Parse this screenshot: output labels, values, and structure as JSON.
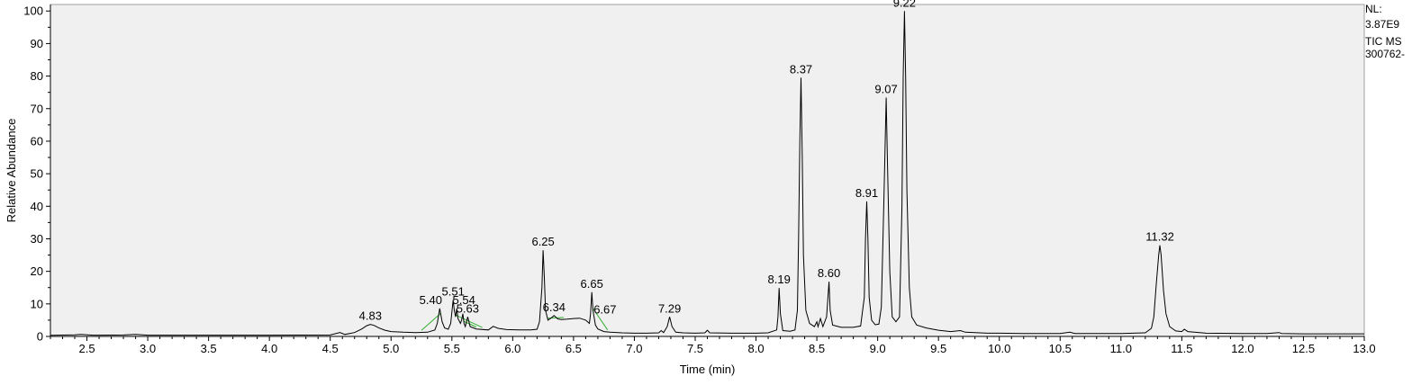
{
  "info": {
    "nl_label": "NL:",
    "nl_value": "3.87E9",
    "scan_label": "TIC  MS",
    "file_label": "300762-"
  },
  "chart_data": {
    "type": "line",
    "xlabel": "Time (min)",
    "ylabel": "Relative Abundance",
    "xlim": [
      2.2,
      13.0
    ],
    "ylim": [
      0,
      102
    ],
    "x_ticks": [
      "2.5",
      "3.0",
      "3.5",
      "4.0",
      "4.5",
      "5.0",
      "5.5",
      "6.0",
      "6.5",
      "7.0",
      "7.5",
      "8.0",
      "8.5",
      "9.0",
      "9.5",
      "10.0",
      "10.5",
      "11.0",
      "11.5",
      "12.0",
      "12.5",
      "13.0"
    ],
    "y_ticks": [
      "0",
      "10",
      "20",
      "30",
      "40",
      "50",
      "60",
      "70",
      "80",
      "90",
      "100"
    ],
    "peaks": [
      {
        "label": "4.83",
        "rt": 4.83,
        "height": 3.7
      },
      {
        "label": "5.40",
        "rt": 5.4,
        "height": 8.6
      },
      {
        "label": "5.51",
        "rt": 5.51,
        "height": 11.2
      },
      {
        "label": "5.54",
        "rt": 5.54,
        "height": 8.6
      },
      {
        "label": "5.63",
        "rt": 5.63,
        "height": 6.0
      },
      {
        "label": "6.25",
        "rt": 6.25,
        "height": 26.5
      },
      {
        "label": "6.34",
        "rt": 6.34,
        "height": 6.4
      },
      {
        "label": "6.65",
        "rt": 6.65,
        "height": 13.6
      },
      {
        "label": "6.67",
        "rt": 6.67,
        "height": 5.7
      },
      {
        "label": "7.29",
        "rt": 7.29,
        "height": 6.0
      },
      {
        "label": "8.19",
        "rt": 8.19,
        "height": 14.9
      },
      {
        "label": "8.37",
        "rt": 8.37,
        "height": 79.5
      },
      {
        "label": "8.60",
        "rt": 8.6,
        "height": 16.8
      },
      {
        "label": "8.91",
        "rt": 8.91,
        "height": 41.5
      },
      {
        "label": "9.07",
        "rt": 9.07,
        "height": 73.4
      },
      {
        "label": "9.22",
        "rt": 9.22,
        "height": 100.0
      },
      {
        "label": "11.32",
        "rt": 11.32,
        "height": 28.0
      }
    ],
    "trace": [
      [
        2.2,
        0.35
      ],
      [
        2.4,
        0.5
      ],
      [
        2.45,
        0.6
      ],
      [
        2.55,
        0.4
      ],
      [
        2.8,
        0.45
      ],
      [
        2.9,
        0.6
      ],
      [
        3.0,
        0.4
      ],
      [
        3.5,
        0.4
      ],
      [
        4.0,
        0.4
      ],
      [
        4.5,
        0.45
      ],
      [
        4.58,
        1.2
      ],
      [
        4.62,
        0.6
      ],
      [
        4.7,
        1.2
      ],
      [
        4.76,
        2.3
      ],
      [
        4.8,
        3.3
      ],
      [
        4.83,
        3.7
      ],
      [
        4.86,
        3.4
      ],
      [
        4.9,
        2.6
      ],
      [
        4.95,
        1.9
      ],
      [
        5.0,
        1.5
      ],
      [
        5.1,
        1.3
      ],
      [
        5.2,
        1.2
      ],
      [
        5.3,
        1.3
      ],
      [
        5.36,
        2.0
      ],
      [
        5.38,
        4.0
      ],
      [
        5.4,
        8.6
      ],
      [
        5.42,
        4.5
      ],
      [
        5.44,
        2.6
      ],
      [
        5.47,
        2.2
      ],
      [
        5.49,
        4.0
      ],
      [
        5.51,
        11.2
      ],
      [
        5.52,
        8.0
      ],
      [
        5.53,
        6.0
      ],
      [
        5.54,
        8.6
      ],
      [
        5.55,
        5.5
      ],
      [
        5.57,
        4.0
      ],
      [
        5.58,
        5.0
      ],
      [
        5.59,
        7.0
      ],
      [
        5.6,
        4.0
      ],
      [
        5.61,
        3.0
      ],
      [
        5.63,
        6.0
      ],
      [
        5.65,
        3.0
      ],
      [
        5.7,
        2.3
      ],
      [
        5.8,
        2.0
      ],
      [
        5.84,
        3.1
      ],
      [
        5.88,
        2.5
      ],
      [
        5.95,
        2.1
      ],
      [
        6.05,
        2.0
      ],
      [
        6.15,
        2.0
      ],
      [
        6.2,
        2.2
      ],
      [
        6.22,
        4.5
      ],
      [
        6.24,
        15.0
      ],
      [
        6.25,
        26.5
      ],
      [
        6.26,
        18.0
      ],
      [
        6.27,
        8.0
      ],
      [
        6.29,
        5.0
      ],
      [
        6.31,
        5.5
      ],
      [
        6.34,
        6.4
      ],
      [
        6.37,
        5.4
      ],
      [
        6.4,
        5.2
      ],
      [
        6.45,
        5.3
      ],
      [
        6.5,
        5.5
      ],
      [
        6.55,
        5.6
      ],
      [
        6.6,
        5.0
      ],
      [
        6.63,
        4.0
      ],
      [
        6.64,
        7.0
      ],
      [
        6.65,
        13.6
      ],
      [
        6.66,
        8.0
      ],
      [
        6.67,
        5.7
      ],
      [
        6.68,
        3.5
      ],
      [
        6.7,
        2.3
      ],
      [
        6.75,
        1.5
      ],
      [
        6.8,
        1.3
      ],
      [
        6.9,
        1.1
      ],
      [
        7.0,
        1.0
      ],
      [
        7.1,
        1.0
      ],
      [
        7.2,
        1.1
      ],
      [
        7.22,
        1.8
      ],
      [
        7.24,
        1.2
      ],
      [
        7.27,
        3.0
      ],
      [
        7.29,
        6.0
      ],
      [
        7.31,
        3.0
      ],
      [
        7.34,
        1.3
      ],
      [
        7.4,
        1.1
      ],
      [
        7.5,
        1.0
      ],
      [
        7.58,
        1.1
      ],
      [
        7.6,
        1.9
      ],
      [
        7.62,
        1.1
      ],
      [
        7.8,
        1.0
      ],
      [
        8.0,
        1.0
      ],
      [
        8.1,
        1.1
      ],
      [
        8.17,
        2.0
      ],
      [
        8.18,
        6.0
      ],
      [
        8.19,
        14.9
      ],
      [
        8.2,
        7.0
      ],
      [
        8.22,
        1.8
      ],
      [
        8.28,
        1.6
      ],
      [
        8.32,
        2.0
      ],
      [
        8.34,
        8.0
      ],
      [
        8.35,
        30.0
      ],
      [
        8.36,
        60.0
      ],
      [
        8.37,
        79.5
      ],
      [
        8.38,
        55.0
      ],
      [
        8.39,
        25.0
      ],
      [
        8.41,
        8.0
      ],
      [
        8.44,
        4.0
      ],
      [
        8.48,
        3.0
      ],
      [
        8.5,
        4.5
      ],
      [
        8.51,
        3.0
      ],
      [
        8.53,
        5.5
      ],
      [
        8.55,
        3.0
      ],
      [
        8.58,
        6.0
      ],
      [
        8.6,
        16.8
      ],
      [
        8.61,
        8.0
      ],
      [
        8.63,
        3.5
      ],
      [
        8.7,
        2.8
      ],
      [
        8.8,
        2.8
      ],
      [
        8.86,
        3.2
      ],
      [
        8.89,
        12.0
      ],
      [
        8.9,
        30.0
      ],
      [
        8.91,
        41.5
      ],
      [
        8.92,
        30.0
      ],
      [
        8.93,
        12.0
      ],
      [
        8.95,
        5.0
      ],
      [
        8.98,
        3.6
      ],
      [
        9.01,
        3.8
      ],
      [
        9.03,
        9.0
      ],
      [
        9.05,
        40.0
      ],
      [
        9.07,
        73.4
      ],
      [
        9.08,
        55.0
      ],
      [
        9.1,
        20.0
      ],
      [
        9.12,
        6.0
      ],
      [
        9.15,
        4.5
      ],
      [
        9.18,
        6.0
      ],
      [
        9.2,
        40.0
      ],
      [
        9.21,
        80.0
      ],
      [
        9.22,
        100.0
      ],
      [
        9.23,
        80.0
      ],
      [
        9.24,
        45.0
      ],
      [
        9.26,
        15.0
      ],
      [
        9.28,
        6.0
      ],
      [
        9.32,
        3.5
      ],
      [
        9.4,
        2.6
      ],
      [
        9.5,
        1.9
      ],
      [
        9.6,
        1.5
      ],
      [
        9.68,
        1.8
      ],
      [
        9.72,
        1.3
      ],
      [
        9.8,
        1.2
      ],
      [
        9.9,
        1.0
      ],
      [
        10.0,
        1.0
      ],
      [
        10.2,
        0.9
      ],
      [
        10.4,
        0.9
      ],
      [
        10.5,
        0.9
      ],
      [
        10.58,
        1.3
      ],
      [
        10.62,
        0.9
      ],
      [
        10.8,
        0.9
      ],
      [
        11.0,
        0.9
      ],
      [
        11.2,
        1.1
      ],
      [
        11.25,
        2.5
      ],
      [
        11.27,
        6.0
      ],
      [
        11.29,
        16.0
      ],
      [
        11.31,
        25.0
      ],
      [
        11.32,
        28.0
      ],
      [
        11.33,
        25.0
      ],
      [
        11.35,
        14.0
      ],
      [
        11.37,
        7.0
      ],
      [
        11.4,
        3.0
      ],
      [
        11.45,
        1.7
      ],
      [
        11.5,
        1.5
      ],
      [
        11.52,
        2.2
      ],
      [
        11.55,
        1.5
      ],
      [
        11.7,
        1.0
      ],
      [
        12.0,
        0.9
      ],
      [
        12.2,
        0.9
      ],
      [
        12.3,
        1.2
      ],
      [
        12.32,
        0.9
      ],
      [
        12.5,
        0.8
      ],
      [
        12.8,
        0.8
      ],
      [
        13.0,
        0.8
      ]
    ],
    "baselines": [
      [
        5.25,
        5.41
      ],
      [
        5.53,
        5.75
      ],
      [
        5.6,
        5.7
      ],
      [
        6.29,
        6.42
      ],
      [
        6.66,
        6.78
      ]
    ]
  }
}
